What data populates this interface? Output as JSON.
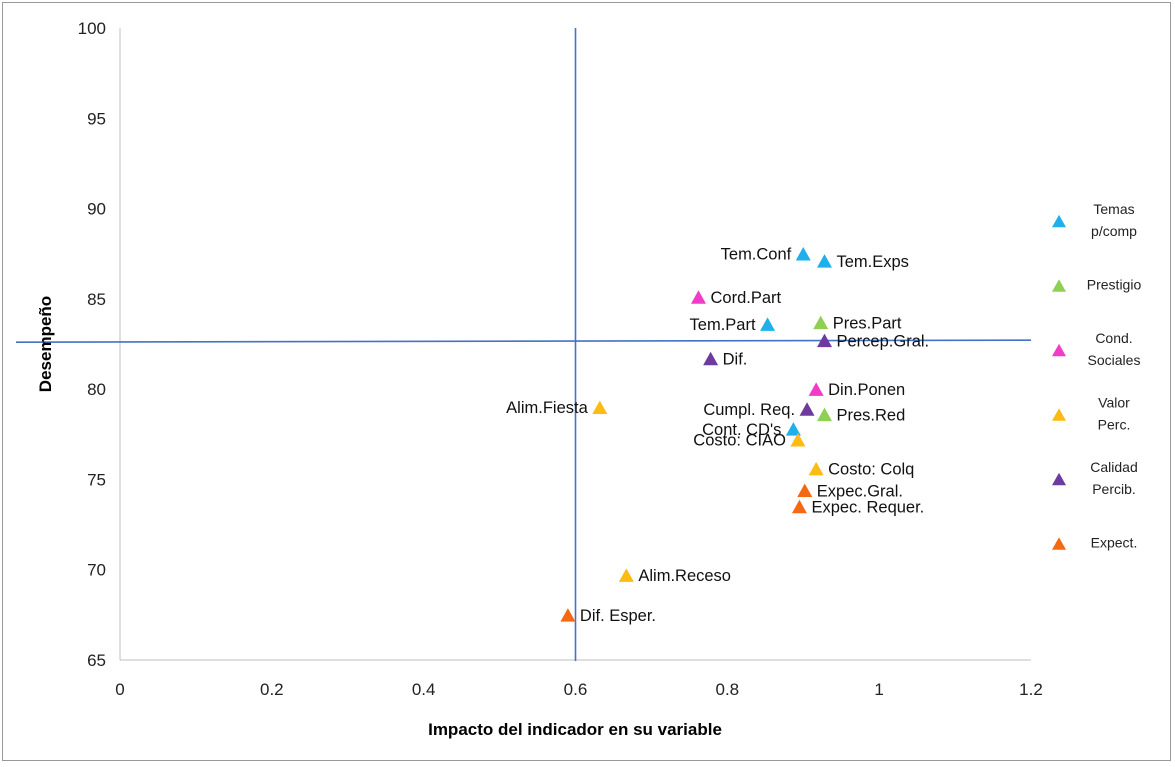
{
  "chart_data": {
    "type": "scatter",
    "title": "",
    "xlabel": "Impacto del indicador en su variable",
    "ylabel": "Desempeño",
    "xlim": [
      0,
      1.2
    ],
    "ylim": [
      65,
      100
    ],
    "xticks": [
      0,
      0.2,
      0.4,
      0.6,
      0.8,
      1,
      1.2
    ],
    "xtick_labels": [
      "0",
      "0.2",
      "0.4",
      "0.6",
      "0.8",
      "1",
      "1.2"
    ],
    "yticks": [
      65,
      70,
      75,
      80,
      85,
      90,
      95,
      100
    ],
    "ytick_labels": [
      "65",
      "70",
      "75",
      "80",
      "85",
      "90",
      "95",
      "100"
    ],
    "grid": false,
    "legend_position": "right",
    "marker": "triangle",
    "reference_lines": {
      "x": 0.6,
      "y": 82.6
    },
    "series": [
      {
        "name": "Temas p/comp",
        "legend_lines": [
          "Temas",
          "p/comp"
        ],
        "color": "#1fb0ec",
        "points": [
          {
            "label": "Tem.Conf",
            "x": 0.9,
            "y": 87.5,
            "label_side": "left"
          },
          {
            "label": "Tem.Exps",
            "x": 0.928,
            "y": 87.1,
            "label_side": "right"
          },
          {
            "label": "Tem.Part",
            "x": 0.853,
            "y": 83.6,
            "label_side": "left"
          },
          {
            "label": "Cont. CD's",
            "x": 0.887,
            "y": 77.8,
            "label_side": "left"
          }
        ]
      },
      {
        "name": "Prestigio",
        "legend_lines": [
          "Prestigio"
        ],
        "color": "#8fcf52",
        "points": [
          {
            "label": "Pres.Part",
            "x": 0.923,
            "y": 83.7,
            "label_side": "right"
          },
          {
            "label": "Pres.Red",
            "x": 0.928,
            "y": 78.6,
            "label_side": "right"
          }
        ]
      },
      {
        "name": "Cond. Sociales",
        "legend_lines": [
          "Cond.",
          "Sociales"
        ],
        "color": "#f03cc8",
        "points": [
          {
            "label": "Cord.Part",
            "x": 0.762,
            "y": 85.1,
            "label_side": "right"
          },
          {
            "label": "Din.Ponen",
            "x": 0.917,
            "y": 80.0,
            "label_side": "right"
          }
        ]
      },
      {
        "name": "Valor Perc.",
        "legend_lines": [
          "Valor",
          "Perc."
        ],
        "color": "#fdbb14",
        "points": [
          {
            "label": "Alim.Fiesta",
            "x": 0.632,
            "y": 79.0,
            "label_side": "left"
          },
          {
            "label": "Costo: CIAO",
            "x": 0.893,
            "y": 77.2,
            "label_side": "left"
          },
          {
            "label": "Costo: Colq",
            "x": 0.917,
            "y": 75.6,
            "label_side": "right"
          },
          {
            "label": "Alim.Receso",
            "x": 0.667,
            "y": 69.7,
            "label_side": "right"
          }
        ]
      },
      {
        "name": "Calidad Percib.",
        "legend_lines": [
          "Calidad",
          "Percib."
        ],
        "color": "#6e3aa0",
        "points": [
          {
            "label": "Percep.Gral.",
            "x": 0.928,
            "y": 82.7,
            "label_side": "right"
          },
          {
            "label": "Dif.",
            "x": 0.778,
            "y": 81.7,
            "label_side": "right"
          },
          {
            "label": "Cumpl. Req.",
            "x": 0.905,
            "y": 78.9,
            "label_side": "left"
          }
        ]
      },
      {
        "name": "Expect.",
        "legend_lines": [
          "Expect."
        ],
        "color": "#f46a12",
        "points": [
          {
            "label": "Expec.Gral.",
            "x": 0.902,
            "y": 74.4,
            "label_side": "right"
          },
          {
            "label": "Expec. Requer.",
            "x": 0.895,
            "y": 73.5,
            "label_side": "right"
          },
          {
            "label": "Dif. Esper.",
            "x": 0.59,
            "y": 67.5,
            "label_side": "right"
          }
        ]
      }
    ]
  }
}
